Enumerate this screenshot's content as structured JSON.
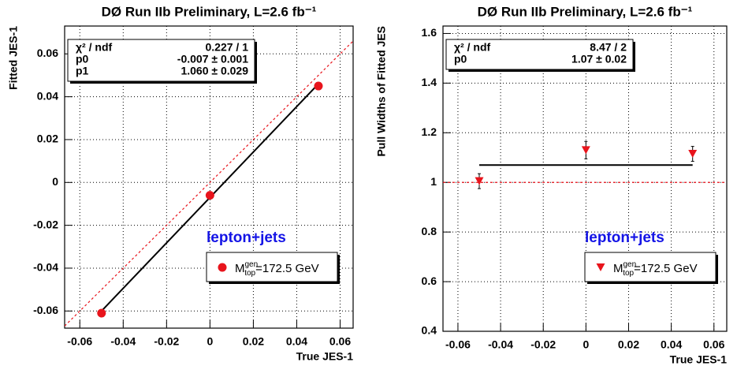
{
  "chart_data": [
    {
      "type": "scatter",
      "title": "DØ Run IIb Preliminary, L=2.6 fb⁻¹",
      "xlabel": "True JES-1",
      "ylabel": "Fitted JES-1",
      "xlim": [
        -0.067,
        0.066
      ],
      "ylim": [
        -0.068,
        0.073
      ],
      "xticks": [
        -0.06,
        -0.04,
        -0.02,
        0,
        0.02,
        0.04,
        0.06
      ],
      "yticks": [
        -0.06,
        -0.04,
        -0.02,
        0,
        0.02,
        0.04,
        0.06
      ],
      "grid": true,
      "marker": "circle",
      "series": [
        {
          "name": {
            "base": "M",
            "sup": "gen",
            "sub": "top",
            "rest": "=172.5 GeV"
          },
          "color": "#e8141c",
          "x": [
            -0.05,
            0,
            0.05
          ],
          "values": [
            -0.061,
            -0.006,
            0.045
          ]
        }
      ],
      "fit": {
        "p0": -0.007,
        "p1": 1.06,
        "color": "#000000"
      },
      "reference": {
        "intercept": 0,
        "slope": 1,
        "color": "#e8141c"
      },
      "stats": [
        [
          "χ² / ndf",
          "0.227 / 1"
        ],
        [
          "p0",
          "-0.007 ± 0.001"
        ],
        [
          "p1",
          "1.060 ± 0.029"
        ]
      ],
      "annotation": "lepton+jets"
    },
    {
      "type": "scatter",
      "title": "DØ Run IIb Preliminary, L=2.6 fb⁻¹",
      "xlabel": "True JES-1",
      "ylabel": "Pull Widths of Fitted JES",
      "xlim": [
        -0.067,
        0.066
      ],
      "ylim": [
        0.4,
        1.63
      ],
      "xticks": [
        -0.06,
        -0.04,
        -0.02,
        0,
        0.02,
        0.04,
        0.06
      ],
      "yticks": [
        0.4,
        0.6,
        0.8,
        1,
        1.2,
        1.4,
        1.6
      ],
      "grid": true,
      "marker": "triangle-down",
      "series": [
        {
          "name": {
            "base": "M",
            "sup": "gen",
            "sub": "top",
            "rest": "=172.5 GeV"
          },
          "color": "#e8141c",
          "x": [
            -0.05,
            0,
            0.05
          ],
          "values": [
            1.005,
            1.13,
            1.115
          ],
          "errors": [
            0.03,
            0.035,
            0.03
          ]
        }
      ],
      "fit": {
        "p0": 1.07,
        "p1": 0,
        "color": "#000000"
      },
      "reference": {
        "intercept": 1,
        "slope": 0,
        "color": "#e8141c"
      },
      "stats": [
        [
          "χ² / ndf",
          "8.47 / 2"
        ],
        [
          "p0",
          "1.07 ± 0.02"
        ]
      ],
      "annotation": "lepton+jets"
    }
  ]
}
